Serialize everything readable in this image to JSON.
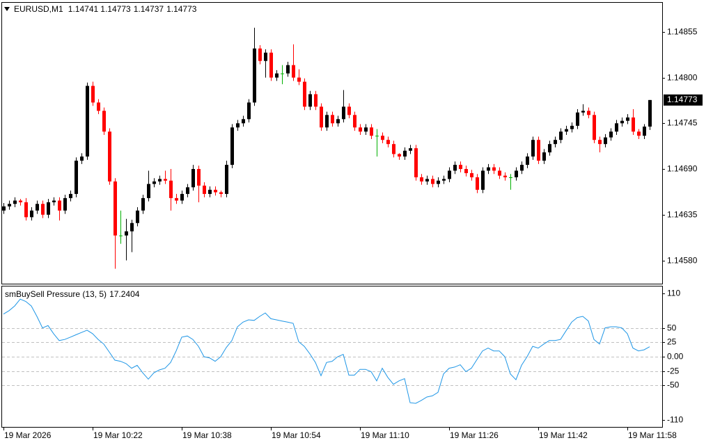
{
  "chart_data": [
    {
      "type": "candlestick",
      "title": "EURUSD,M1",
      "colors": {
        "up": "#000000",
        "down": "#ff0000",
        "doji": "#00b000"
      },
      "ylim": [
        1.14552,
        1.1489
      ],
      "yticks": [
        1.14855,
        {
          "value": 1.148,
          "label": "1.14800"
        },
        1.14745,
        {
          "value": 1.1469,
          "label": "1.14690"
        },
        1.14635,
        {
          "value": 1.1458,
          "label": "1.14580"
        }
      ],
      "categories": [
        "19 Mar 2026",
        null,
        null,
        null,
        null,
        null,
        null,
        null,
        null,
        null,
        null,
        null,
        null,
        null,
        null,
        null,
        "19 Mar 10:22",
        null,
        null,
        null,
        null,
        null,
        null,
        null,
        null,
        null,
        null,
        null,
        null,
        null,
        null,
        null,
        "19 Mar 10:38",
        null,
        null,
        null,
        null,
        null,
        null,
        null,
        null,
        null,
        null,
        null,
        null,
        null,
        null,
        null,
        "19 Mar 10:54",
        null,
        null,
        null,
        null,
        null,
        null,
        null,
        null,
        null,
        null,
        null,
        null,
        null,
        null,
        null,
        "19 Mar 11:10",
        null,
        null,
        null,
        null,
        null,
        null,
        null,
        null,
        null,
        null,
        null,
        null,
        null,
        null,
        null,
        "19 Mar 11:26",
        null,
        null,
        null,
        null,
        null,
        null,
        null,
        null,
        null,
        null,
        null,
        null,
        null,
        null,
        null,
        "19 Mar 11:42",
        null,
        null,
        null,
        null,
        null,
        null,
        null,
        null,
        null,
        null,
        null,
        null,
        null,
        null,
        null,
        "19 Mar 11:58",
        null,
        null,
        null,
        null
      ],
      "ohlc": [
        [
          1.1464,
          1.14649,
          1.14636,
          1.14645
        ],
        [
          1.14645,
          1.14652,
          1.14641,
          1.14648
        ],
        [
          1.14648,
          1.14656,
          1.14644,
          1.14652
        ],
        [
          1.14652,
          1.14654,
          1.14646,
          1.1465
        ],
        [
          1.1465,
          1.14655,
          1.14628,
          1.14632
        ],
        [
          1.14632,
          1.14644,
          1.14628,
          1.1464
        ],
        [
          1.1464,
          1.14652,
          1.14636,
          1.14648
        ],
        [
          1.14648,
          1.14652,
          1.14631,
          1.14635
        ],
        [
          1.14635,
          1.14654,
          1.14631,
          1.1465
        ],
        [
          1.1465,
          1.14656,
          1.14646,
          1.14652
        ],
        [
          1.14652,
          1.14656,
          1.14628,
          1.1464
        ],
        [
          1.1464,
          1.14659,
          1.14636,
          1.14655
        ],
        [
          1.14655,
          1.14664,
          1.14651,
          1.1466
        ],
        [
          1.1466,
          1.14704,
          1.14656,
          1.147
        ],
        [
          1.147,
          1.14709,
          1.14696,
          1.14705
        ],
        [
          1.14705,
          1.14794,
          1.14701,
          1.1479
        ],
        [
          1.1479,
          1.14795,
          1.14766,
          1.1477
        ],
        [
          1.1477,
          1.14774,
          1.14756,
          1.1476
        ],
        [
          1.1476,
          1.14764,
          1.14731,
          1.14735
        ],
        [
          1.14735,
          1.14739,
          1.14671,
          1.14675
        ],
        [
          1.14675,
          1.14679,
          1.1457,
          1.1461
        ],
        [
          1.1461,
          1.1464,
          1.146,
          1.1461
        ],
        [
          1.1461,
          1.1463,
          1.1458,
          1.14615
        ],
        [
          1.14615,
          1.14629,
          1.1459,
          1.14625
        ],
        [
          1.14625,
          1.14644,
          1.14621,
          1.1464
        ],
        [
          1.1464,
          1.14659,
          1.14636,
          1.14655
        ],
        [
          1.14655,
          1.14688,
          1.14651,
          1.14672
        ],
        [
          1.14672,
          1.14679,
          1.14668,
          1.14675
        ],
        [
          1.14675,
          1.14682,
          1.14671,
          1.14678
        ],
        [
          1.14678,
          1.14688,
          1.14672,
          1.14676
        ],
        [
          1.14676,
          1.1469,
          1.1464,
          1.14655
        ],
        [
          1.14655,
          1.1466,
          1.14648,
          1.14652
        ],
        [
          1.14652,
          1.14664,
          1.14648,
          1.1466
        ],
        [
          1.1466,
          1.14672,
          1.14656,
          1.14668
        ],
        [
          1.14668,
          1.14695,
          1.14664,
          1.1469
        ],
        [
          1.1469,
          1.14694,
          1.1465,
          1.1467
        ],
        [
          1.1467,
          1.14674,
          1.14656,
          1.1466
        ],
        [
          1.1466,
          1.14669,
          1.14656,
          1.14665
        ],
        [
          1.14665,
          1.14669,
          1.14658,
          1.14662
        ],
        [
          1.14662,
          1.14664,
          1.14656,
          1.1466
        ],
        [
          1.1466,
          1.147,
          1.14656,
          1.14695
        ],
        [
          1.14695,
          1.14744,
          1.14691,
          1.1474
        ],
        [
          1.1474,
          1.14749,
          1.14736,
          1.14745
        ],
        [
          1.14745,
          1.14754,
          1.14741,
          1.1475
        ],
        [
          1.1475,
          1.14774,
          1.14746,
          1.1477
        ],
        [
          1.1477,
          1.1486,
          1.14766,
          1.14835
        ],
        [
          1.14835,
          1.14839,
          1.14816,
          1.1482
        ],
        [
          1.1482,
          1.14834,
          1.148,
          1.1483
        ],
        [
          1.1483,
          1.14834,
          1.14796,
          1.148
        ],
        [
          1.148,
          1.14809,
          1.14796,
          1.14805
        ],
        [
          1.14805,
          1.14815,
          1.14792,
          1.14805
        ],
        [
          1.14805,
          1.14819,
          1.14801,
          1.14815
        ],
        [
          1.14815,
          1.1484,
          1.14796,
          1.148
        ],
        [
          1.148,
          1.1481,
          1.14791,
          1.14795
        ],
        [
          1.14795,
          1.14799,
          1.14761,
          1.14765
        ],
        [
          1.14765,
          1.14784,
          1.14761,
          1.1478
        ],
        [
          1.1478,
          1.14784,
          1.14761,
          1.14765
        ],
        [
          1.14765,
          1.14769,
          1.14736,
          1.1474
        ],
        [
          1.1474,
          1.14759,
          1.14736,
          1.14755
        ],
        [
          1.14755,
          1.14759,
          1.14741,
          1.14745
        ],
        [
          1.14745,
          1.14754,
          1.14741,
          1.1475
        ],
        [
          1.1475,
          1.14785,
          1.14746,
          1.14765
        ],
        [
          1.14765,
          1.14769,
          1.14751,
          1.14755
        ],
        [
          1.14755,
          1.14759,
          1.14736,
          1.1474
        ],
        [
          1.1474,
          1.14744,
          1.14731,
          1.14735
        ],
        [
          1.14735,
          1.14744,
          1.14731,
          1.1474
        ],
        [
          1.1474,
          1.14744,
          1.14726,
          1.1473
        ],
        [
          1.1473,
          1.14738,
          1.14705,
          1.1473
        ],
        [
          1.1473,
          1.14734,
          1.14721,
          1.14725
        ],
        [
          1.14725,
          1.14729,
          1.14716,
          1.1472
        ],
        [
          1.1472,
          1.14724,
          1.14704,
          1.14708
        ],
        [
          1.14708,
          1.14709,
          1.14701,
          1.14705
        ],
        [
          1.14705,
          1.14716,
          1.14701,
          1.14712
        ],
        [
          1.14712,
          1.14719,
          1.14708,
          1.14715
        ],
        [
          1.14715,
          1.14719,
          1.14676,
          1.1468
        ],
        [
          1.1468,
          1.14684,
          1.14671,
          1.14675
        ],
        [
          1.14675,
          1.14682,
          1.14671,
          1.14678
        ],
        [
          1.14678,
          1.14682,
          1.14668,
          1.14672
        ],
        [
          1.14672,
          1.1468,
          1.14668,
          1.14676
        ],
        [
          1.14676,
          1.14682,
          1.14672,
          1.14678
        ],
        [
          1.14678,
          1.14692,
          1.14674,
          1.14688
        ],
        [
          1.14688,
          1.14699,
          1.14684,
          1.14695
        ],
        [
          1.14695,
          1.14699,
          1.14686,
          1.1469
        ],
        [
          1.1469,
          1.14694,
          1.14681,
          1.14685
        ],
        [
          1.14685,
          1.14689,
          1.14676,
          1.1468
        ],
        [
          1.1468,
          1.14684,
          1.14661,
          1.14665
        ],
        [
          1.14665,
          1.14692,
          1.14661,
          1.14688
        ],
        [
          1.14688,
          1.14696,
          1.14684,
          1.14692
        ],
        [
          1.14692,
          1.14696,
          1.14684,
          1.14688
        ],
        [
          1.14688,
          1.14692,
          1.14678,
          1.14682
        ],
        [
          1.14682,
          1.14686,
          1.14676,
          1.1468
        ],
        [
          1.1468,
          1.14684,
          1.14665,
          1.1468
        ],
        [
          1.1468,
          1.14692,
          1.14676,
          1.14688
        ],
        [
          1.14688,
          1.14699,
          1.14684,
          1.14695
        ],
        [
          1.14695,
          1.14709,
          1.14691,
          1.14705
        ],
        [
          1.14705,
          1.14729,
          1.14701,
          1.14725
        ],
        [
          1.14725,
          1.14729,
          1.14696,
          1.147
        ],
        [
          1.147,
          1.14714,
          1.14696,
          1.1471
        ],
        [
          1.1471,
          1.14724,
          1.14706,
          1.1472
        ],
        [
          1.1472,
          1.14729,
          1.14716,
          1.14725
        ],
        [
          1.14725,
          1.14739,
          1.14721,
          1.14735
        ],
        [
          1.14735,
          1.14742,
          1.14731,
          1.14738
        ],
        [
          1.14738,
          1.14746,
          1.14734,
          1.14742
        ],
        [
          1.14742,
          1.14762,
          1.14738,
          1.14758
        ],
        [
          1.14758,
          1.14768,
          1.14754,
          1.1476
        ],
        [
          1.1476,
          1.14764,
          1.14751,
          1.14755
        ],
        [
          1.14755,
          1.14759,
          1.14721,
          1.14725
        ],
        [
          1.14725,
          1.14729,
          1.1471,
          1.1472
        ],
        [
          1.1472,
          1.14732,
          1.14716,
          1.14728
        ],
        [
          1.14728,
          1.14739,
          1.14724,
          1.14735
        ],
        [
          1.14735,
          1.14749,
          1.14731,
          1.14745
        ],
        [
          1.14745,
          1.14752,
          1.14741,
          1.14748
        ],
        [
          1.14748,
          1.14756,
          1.14744,
          1.14752
        ],
        [
          1.14752,
          1.14762,
          1.14731,
          1.14735
        ],
        [
          1.14735,
          1.14738,
          1.14726,
          1.1473
        ],
        [
          1.1473,
          1.14744,
          1.14726,
          1.14741
        ],
        [
          1.14741,
          1.14773,
          1.14737,
          1.14773
        ]
      ]
    },
    {
      "type": "line",
      "title": "smBuySell Pressure (13, 5)",
      "color": "#1e96e6",
      "ylim": [
        -122,
        122
      ],
      "yticks": [
        110,
        50,
        25,
        {
          "value": 0,
          "label": "0.00"
        },
        -25,
        -50,
        -110
      ],
      "grid_levels": [
        50,
        25,
        0,
        -25,
        -50
      ],
      "values": [
        74,
        80,
        88,
        100,
        96,
        88,
        70,
        50,
        54,
        40,
        28,
        30,
        34,
        38,
        42,
        46,
        40,
        30,
        22,
        8,
        -6,
        -8,
        -12,
        -20,
        -15,
        -28,
        -39,
        -28,
        -23,
        -20,
        -10,
        10,
        34,
        36,
        30,
        18,
        0,
        -2,
        -8,
        0,
        16,
        28,
        52,
        60,
        64,
        63,
        70,
        76,
        66,
        64,
        62,
        60,
        58,
        26,
        18,
        5,
        -10,
        -33,
        -10,
        -8,
        0,
        4,
        -32,
        -32,
        -22,
        -22,
        -26,
        -42,
        -20,
        -36,
        -48,
        -42,
        -38,
        -80,
        -81,
        -76,
        -70,
        -68,
        -62,
        -30,
        -20,
        -18,
        -14,
        -26,
        -20,
        -5,
        10,
        15,
        10,
        10,
        0,
        -30,
        -40,
        -15,
        0,
        18,
        15,
        22,
        28,
        28,
        30,
        45,
        60,
        68,
        70,
        62,
        30,
        22,
        50,
        52,
        52,
        50,
        40,
        15,
        10,
        12,
        17.2404
      ]
    }
  ]
}
